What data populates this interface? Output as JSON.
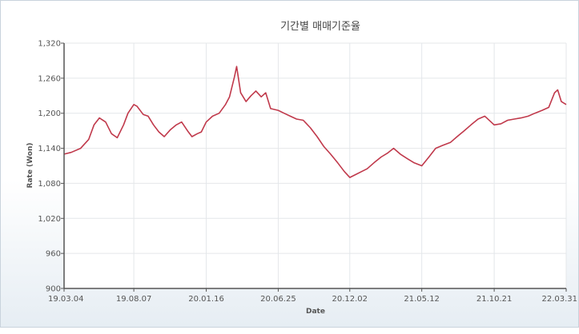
{
  "chart_data": {
    "type": "line",
    "title": "기간별 매매기준율",
    "xlabel": "Date",
    "ylabel": "Rate (Won)",
    "ylim": [
      900,
      1320
    ],
    "yticks": [
      900,
      960,
      1020,
      1080,
      1140,
      1200,
      1260,
      1320
    ],
    "ytick_labels": [
      "900",
      "960",
      "1,020",
      "1,080",
      "1,140",
      "1,200",
      "1,260",
      "1,320"
    ],
    "xticks": [
      {
        "label": "19.03.04",
        "date": "2019-03-04"
      },
      {
        "label": "19.08.07",
        "date": "2019-08-07"
      },
      {
        "label": "20.01.16",
        "date": "2020-01-16"
      },
      {
        "label": "20.06.25",
        "date": "2020-06-25"
      },
      {
        "label": "20.12.02",
        "date": "2020-12-02"
      },
      {
        "label": "21.05.12",
        "date": "2021-05-12"
      },
      {
        "label": "21.10.21",
        "date": "2021-10-21"
      },
      {
        "label": "22.03.31",
        "date": "2022-03-31"
      }
    ],
    "grid": true,
    "colors": {
      "line": "#c0394b",
      "grid": "#e4e7ea",
      "axis": "#555555"
    },
    "series": [
      {
        "x": [
          "2019-03-04",
          "2019-03-20",
          "2019-04-10",
          "2019-04-28",
          "2019-05-10",
          "2019-05-22",
          "2019-06-05",
          "2019-06-18",
          "2019-07-01",
          "2019-07-15",
          "2019-07-25",
          "2019-08-07",
          "2019-08-14",
          "2019-08-28",
          "2019-09-08",
          "2019-09-20",
          "2019-10-02",
          "2019-10-14",
          "2019-10-28",
          "2019-11-10",
          "2019-11-22",
          "2019-12-05",
          "2019-12-15",
          "2019-12-27",
          "2020-01-05",
          "2020-01-16",
          "2020-01-30",
          "2020-02-14",
          "2020-02-28",
          "2020-03-08",
          "2020-03-19",
          "2020-03-24",
          "2020-04-02",
          "2020-04-14",
          "2020-04-25",
          "2020-05-06",
          "2020-05-18",
          "2020-05-28",
          "2020-06-08",
          "2020-06-25",
          "2020-07-08",
          "2020-07-22",
          "2020-08-05",
          "2020-08-20",
          "2020-09-05",
          "2020-09-20",
          "2020-10-05",
          "2020-10-20",
          "2020-11-05",
          "2020-11-20",
          "2020-12-02",
          "2020-12-15",
          "2020-12-28",
          "2021-01-10",
          "2021-01-25",
          "2021-02-10",
          "2021-02-25",
          "2021-03-10",
          "2021-03-25",
          "2021-04-10",
          "2021-04-25",
          "2021-05-12",
          "2021-05-28",
          "2021-06-12",
          "2021-06-28",
          "2021-07-15",
          "2021-07-30",
          "2021-08-15",
          "2021-08-30",
          "2021-09-15",
          "2021-09-30",
          "2021-10-21",
          "2021-11-05",
          "2021-11-20",
          "2021-12-05",
          "2021-12-20",
          "2022-01-05",
          "2022-01-20",
          "2022-02-05",
          "2022-02-20",
          "2022-03-05",
          "2022-03-12",
          "2022-03-20",
          "2022-03-31"
        ],
        "y": [
          1130,
          1133,
          1140,
          1155,
          1180,
          1192,
          1185,
          1165,
          1158,
          1180,
          1200,
          1215,
          1212,
          1198,
          1195,
          1180,
          1168,
          1160,
          1172,
          1180,
          1185,
          1170,
          1160,
          1165,
          1168,
          1185,
          1195,
          1200,
          1215,
          1228,
          1262,
          1280,
          1235,
          1220,
          1230,
          1238,
          1228,
          1235,
          1208,
          1205,
          1200,
          1195,
          1190,
          1188,
          1175,
          1160,
          1143,
          1130,
          1115,
          1100,
          1090,
          1095,
          1100,
          1105,
          1115,
          1125,
          1132,
          1140,
          1130,
          1122,
          1115,
          1110,
          1125,
          1140,
          1145,
          1150,
          1160,
          1170,
          1180,
          1190,
          1195,
          1180,
          1182,
          1188,
          1190,
          1192,
          1195,
          1200,
          1205,
          1210,
          1235,
          1240,
          1220,
          1215
        ]
      }
    ]
  }
}
